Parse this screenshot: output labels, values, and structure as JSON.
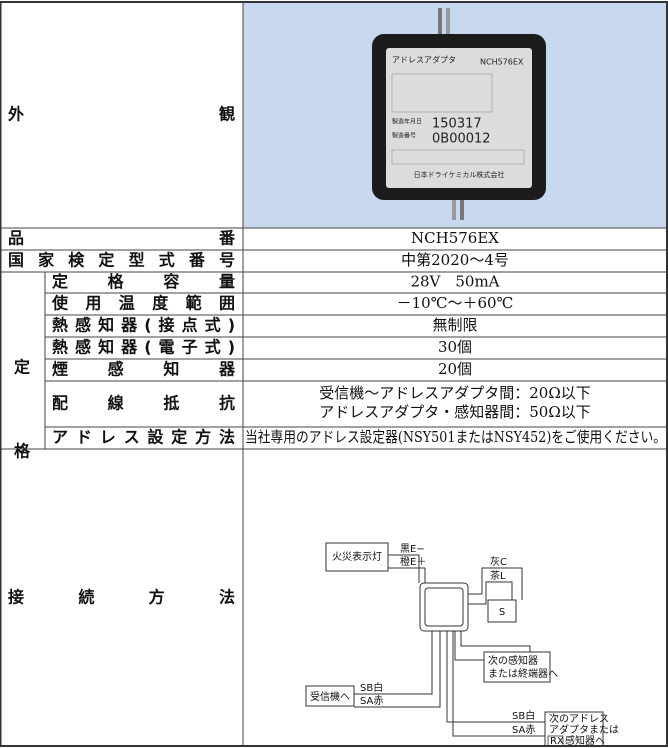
{
  "appearance": {
    "label": "外観",
    "photo": {
      "product": "アドレスアダプタ",
      "model": "NCH576EX",
      "date_label": "製造年月日",
      "date": "150317",
      "serial_label": "製造番号",
      "serial": "0B00012",
      "maker": "日本ドライケミカル株式会社"
    }
  },
  "rows": [
    {
      "label": "品番",
      "value": "NCH576EX"
    },
    {
      "label": "国家検定型式番号",
      "value": "中第2020～4号"
    }
  ],
  "rating": {
    "label_chars": [
      "定",
      "格"
    ],
    "rows": [
      {
        "label": "定格容量",
        "value": "28V　50mA"
      },
      {
        "label": "使用温度範囲",
        "value": "－10℃～＋60℃"
      },
      {
        "label": "熱感知器(接点式)",
        "value": "無制限"
      },
      {
        "label": "熱感知器(電子式)",
        "value": "30個"
      },
      {
        "label": "煙感知器",
        "value": "20個"
      },
      {
        "label": "配線抵抗",
        "value": [
          "受信機～アドレスアダプタ間：20Ω以下",
          "アドレスアダプタ・感知器間：50Ω以下"
        ]
      },
      {
        "label": "アドレス設定方法",
        "value": "当社専用のアドレス設定器(NSY501またはNSY452)をご使用ください。"
      }
    ]
  },
  "wiring": {
    "label": "接続方法",
    "lamp": "火災表示灯",
    "black": "黒E−",
    "orange": "橙E＋",
    "gray": "灰C",
    "brown": "茶L",
    "sensor": "S",
    "next_sensor": [
      "次の感知器",
      "または終端器へ"
    ],
    "receiver": "受信機へ",
    "in_sb": "SB白",
    "in_sa": "SA赤",
    "out_sb": "SB白",
    "out_sa": "SA赤",
    "next_adapter": [
      "次のアドレス",
      "アダプタまたは",
      "RX",
      "感知器へ"
    ]
  }
}
